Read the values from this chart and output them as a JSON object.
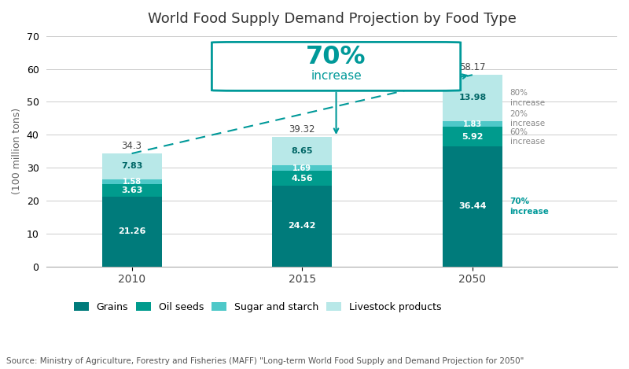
{
  "title": "World Food Supply Demand Projection by Food Type",
  "ylabel": "(100 million tons)",
  "years": [
    "2010",
    "2015",
    "2050"
  ],
  "grains": [
    21.26,
    24.42,
    36.44
  ],
  "oil_seeds": [
    3.63,
    4.56,
    5.92
  ],
  "sugar_starch": [
    1.58,
    1.69,
    1.83
  ],
  "livestock": [
    7.83,
    8.65,
    13.98
  ],
  "totals": [
    34.3,
    39.32,
    58.17
  ],
  "color_grains": "#007B7B",
  "color_oil_seeds": "#009B8D",
  "color_sugar_starch": "#4EC8C8",
  "color_livestock": "#B8E8E8",
  "ylim": [
    0,
    70
  ],
  "yticks": [
    0,
    10,
    20,
    30,
    40,
    50,
    60,
    70
  ],
  "source_text": "Source: Ministry of Agriculture, Forestry and Fisheries (MAFF) \"Long-term World Food Supply and Demand Projection for 2050\"",
  "legend_labels": [
    "Grains",
    "Oil seeds",
    "Sugar and starch",
    "Livestock products"
  ],
  "bg_color": "#FFFFFF",
  "grid_color": "#CCCCCC",
  "teal_color": "#009999"
}
